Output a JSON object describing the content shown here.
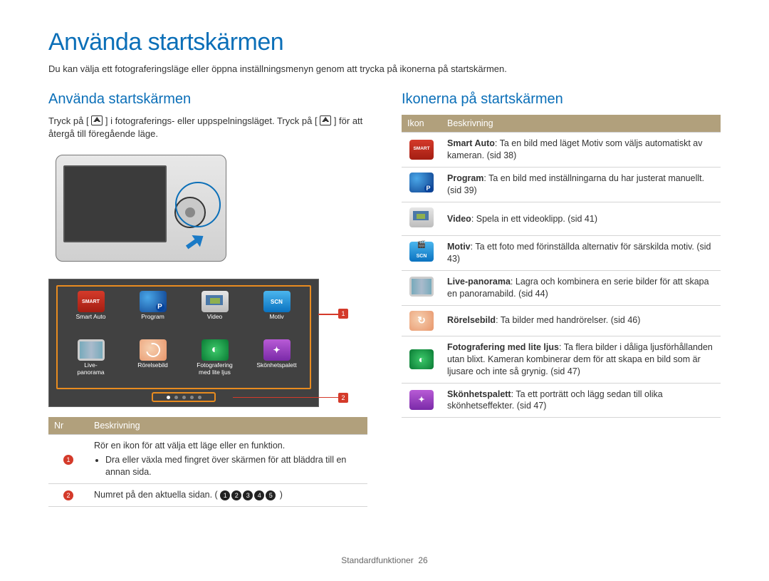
{
  "page": {
    "title": "Använda startskärmen",
    "intro": "Du kan välja ett fotograferingsläge eller öppna inställningsmenyn genom att trycka på ikonerna på startskärmen.",
    "footer_section": "Standardfunktioner",
    "footer_page": "26"
  },
  "left": {
    "heading": "Använda startskärmen",
    "text_before_icon": "Tryck på [",
    "text_mid": "] i fotograferings- eller uppspelningsläget. Tryck på [",
    "text_after_icon": "] för att återgå till föregående läge.",
    "home_icons": [
      {
        "name": "smart-auto-icon",
        "label": "Smart Auto",
        "css": "ico-smart"
      },
      {
        "name": "program-icon",
        "label": "Program",
        "css": "ico-prog"
      },
      {
        "name": "video-icon",
        "label": "Video",
        "css": "ico-video"
      },
      {
        "name": "motiv-icon",
        "label": "Motiv",
        "css": "ico-scn"
      },
      {
        "name": "panorama-icon",
        "label": "Live-\npanorama",
        "css": "ico-pano"
      },
      {
        "name": "motion-icon",
        "label": "Rörelsebild",
        "css": "ico-motion"
      },
      {
        "name": "lowlight-icon",
        "label": "Fotografering\nmed lite ljus",
        "css": "ico-lowlight"
      },
      {
        "name": "beauty-icon",
        "label": "Skönhetspalett",
        "css": "ico-beauty"
      }
    ],
    "table": {
      "headers": [
        "Nr",
        "Beskrivning"
      ],
      "rows": [
        {
          "num": "1",
          "desc_line": "Rör en ikon för att välja ett läge eller en funktion.",
          "bullet": "Dra eller växla med fingret över skärmen för att bläddra till en annan sida."
        },
        {
          "num": "2",
          "desc_prefix": "Numret på den aktuella sidan. (",
          "desc_suffix": ")",
          "badges": [
            "1",
            "2",
            "3",
            "4",
            "5"
          ]
        }
      ]
    },
    "callouts": {
      "one": "1",
      "two": "2"
    }
  },
  "right": {
    "heading": "Ikonerna på startskärmen",
    "table": {
      "headers": [
        "Ikon",
        "Beskrivning"
      ],
      "rows": [
        {
          "name": "smart-auto-icon",
          "css": "ikon-smart",
          "bold": "Smart Auto",
          "text": ": Ta en bild med läget Motiv som väljs automatiskt av kameran. (sid 38)"
        },
        {
          "name": "program-icon",
          "css": "ikon-prog",
          "bold": "Program",
          "text": ": Ta en bild med inställningarna du har justerat manuellt. (sid 39)"
        },
        {
          "name": "video-icon",
          "css": "ikon-video",
          "bold": "Video",
          "text": ": Spela in ett videoklipp. (sid 41)"
        },
        {
          "name": "motiv-icon",
          "css": "ikon-scn",
          "bold": "Motiv",
          "text": ": Ta ett foto med förinställda alternativ för särskilda motiv. (sid 43)"
        },
        {
          "name": "panorama-icon",
          "css": "ikon-pano",
          "bold": "Live-panorama",
          "text": ": Lagra och kombinera en serie bilder för att skapa en panoramabild. (sid 44)"
        },
        {
          "name": "motion-icon",
          "css": "ikon-motion",
          "bold": "Rörelsebild",
          "text": ": Ta bilder med handrörelser. (sid 46)"
        },
        {
          "name": "lowlight-icon",
          "css": "ikon-lowlight",
          "bold": "Fotografering med lite ljus",
          "text": ": Ta flera bilder i dåliga ljusförhållanden utan blixt. Kameran kombinerar dem för att skapa en bild som är ljusare och inte så grynig. (sid 47)"
        },
        {
          "name": "beauty-icon",
          "css": "ikon-beauty",
          "bold": "Skönhetspalett",
          "text": ": Ta ett porträtt och lägg sedan till olika skönhetseffekter. (sid 47)"
        }
      ]
    }
  },
  "colors": {
    "brand_blue": "#0b6fb8",
    "table_header_bg": "#b1a07c",
    "callout_red": "#d43a2a",
    "highlight_orange": "#e88b1f"
  }
}
